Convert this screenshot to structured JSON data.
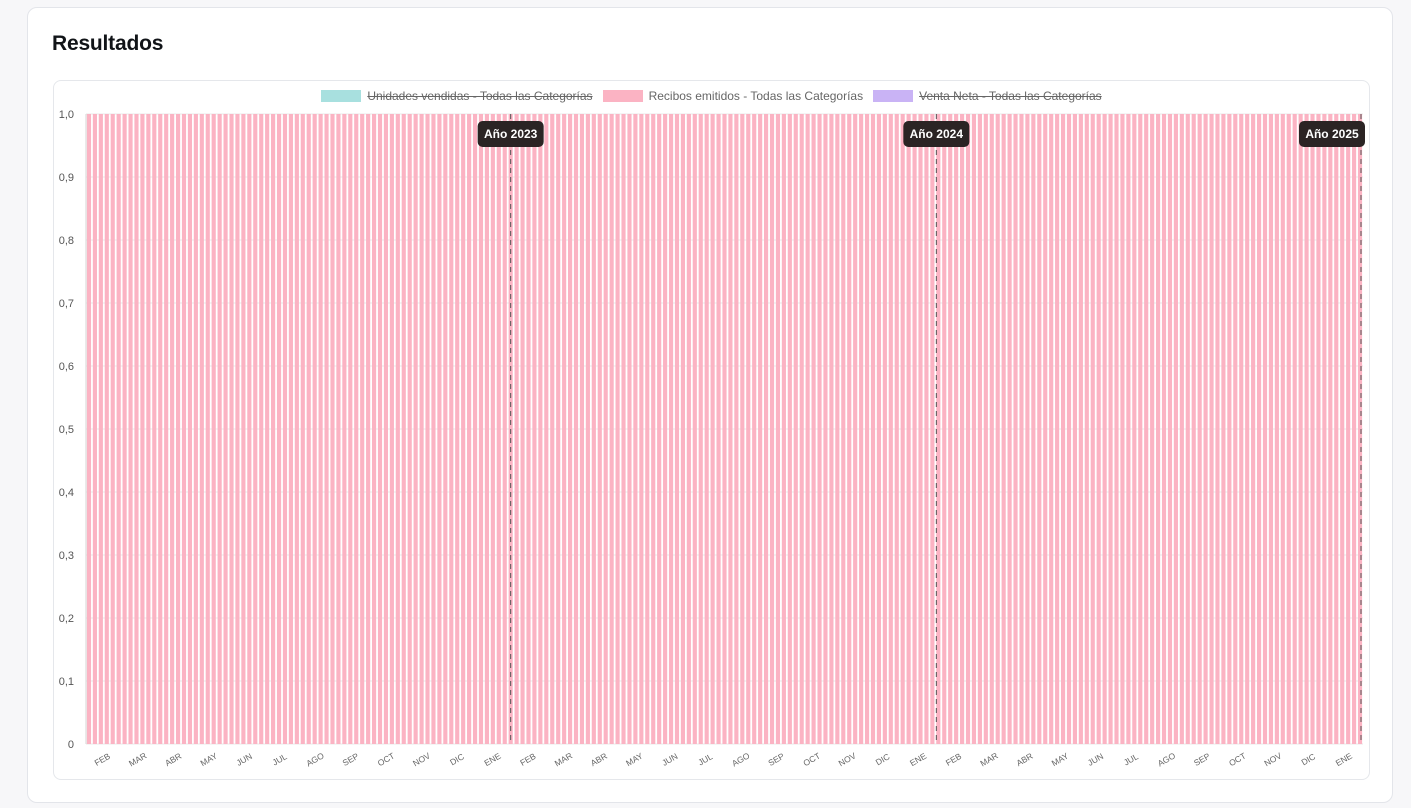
{
  "card": {
    "title": "Resultados"
  },
  "legend": [
    {
      "label": "Unidades vendidas - Todas las Categorías",
      "color": "#a8e0df",
      "hidden": true
    },
    {
      "label": "Recibos emitidos - Todas las Categorías",
      "color": "#fbb3c3",
      "hidden": false
    },
    {
      "label": "Venta Neta - Todas las Categorías",
      "color": "#c9b3f5",
      "hidden": true
    }
  ],
  "chart_data": {
    "type": "bar",
    "title": "",
    "xlabel": "",
    "ylabel": "",
    "ylim": [
      0,
      1
    ],
    "y_ticks": [
      "0",
      "0,1",
      "0,2",
      "0,3",
      "0,4",
      "0,5",
      "0,6",
      "0,7",
      "0,8",
      "0,9",
      "1,0"
    ],
    "grid": true,
    "legend_position": "top-center",
    "bar_color": "#fbb3c3",
    "series": [
      {
        "name": "Recibos emitidos - Todas las Categorías",
        "value_all_bars": 1.0
      }
    ],
    "bar_count": 215,
    "month_tick_labels": [
      "FEB",
      "MAR",
      "ABR",
      "MAY",
      "JUN",
      "JUL",
      "AGO",
      "SEP",
      "OCT",
      "NOV",
      "DIC",
      "ENE",
      "FEB",
      "MAR",
      "ABR",
      "MAY",
      "JUN",
      "JUL",
      "AGO",
      "SEP",
      "OCT",
      "NOV",
      "DIC",
      "ENE",
      "FEB",
      "MAR",
      "ABR",
      "MAY",
      "JUN",
      "JUL",
      "AGO",
      "SEP",
      "OCT",
      "NOV",
      "DIC",
      "ENE"
    ],
    "year_markers": [
      {
        "label": "Año 2023",
        "after_month_index": 11
      },
      {
        "label": "Año 2024",
        "after_month_index": 23
      },
      {
        "label": "Año 2025",
        "after_month_index": 35
      }
    ]
  }
}
